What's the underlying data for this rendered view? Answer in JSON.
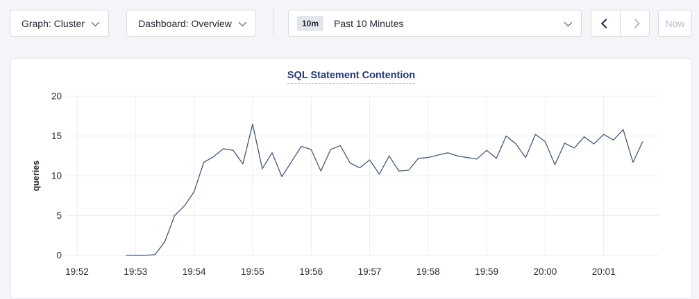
{
  "toolbar": {
    "graph_dropdown_label": "Graph: Cluster",
    "dashboard_dropdown_label": "Dashboard: Overview",
    "time_range_badge": "10m",
    "time_range_label": "Past 10 Minutes",
    "now_button_label": "Now"
  },
  "icons": {
    "chevron_down": "css-chevron-down-shape",
    "chevron_left": "css-chevron-left-shape",
    "chevron_right": "css-chevron-right-shape"
  },
  "colors": {
    "page_background": "#f4f5f9",
    "card_background": "#ffffff",
    "line": "#475872",
    "gridline": "#ebedf0",
    "title": "#24386b",
    "disabled": "#b9bfc9"
  },
  "chart_data": {
    "type": "line",
    "title": "SQL Statement Contention",
    "ylabel": "queries",
    "ylim": [
      0,
      20
    ],
    "y_ticks": [
      0,
      5,
      10,
      15,
      20
    ],
    "x_ticks": [
      "19:52",
      "19:53",
      "19:54",
      "19:55",
      "19:56",
      "19:57",
      "19:58",
      "19:59",
      "20:00",
      "20:01"
    ],
    "grid": true,
    "legend": "none",
    "line_color": "#475872",
    "series": [
      {
        "name": "queries",
        "x": [
          "19:52:50",
          "19:53:00",
          "19:53:10",
          "19:53:20",
          "19:53:30",
          "19:53:40",
          "19:53:50",
          "19:54:00",
          "19:54:10",
          "19:54:20",
          "19:54:30",
          "19:54:40",
          "19:54:50",
          "19:55:00",
          "19:55:10",
          "19:55:20",
          "19:55:30",
          "19:55:40",
          "19:55:50",
          "19:56:00",
          "19:56:10",
          "19:56:20",
          "19:56:30",
          "19:56:40",
          "19:56:50",
          "19:57:00",
          "19:57:10",
          "19:57:20",
          "19:57:30",
          "19:57:40",
          "19:57:50",
          "19:58:00",
          "19:58:10",
          "19:58:20",
          "19:58:30",
          "19:58:40",
          "19:58:50",
          "19:59:00",
          "19:59:10",
          "19:59:20",
          "19:59:30",
          "19:59:40",
          "19:59:50",
          "20:00:00",
          "20:00:10",
          "20:00:20",
          "20:00:30",
          "20:00:40",
          "20:00:50",
          "20:01:00",
          "20:01:10",
          "20:01:20",
          "20:01:30",
          "20:01:40"
        ],
        "values": [
          0,
          0,
          0,
          0.1,
          1.7,
          5.0,
          6.2,
          8.0,
          11.7,
          12.4,
          13.4,
          13.2,
          11.5,
          16.5,
          10.9,
          12.9,
          9.9,
          11.8,
          13.7,
          13.3,
          10.6,
          13.3,
          13.8,
          11.6,
          11.0,
          12.0,
          10.2,
          12.5,
          10.6,
          10.7,
          12.2,
          12.3,
          12.6,
          12.9,
          12.5,
          12.3,
          12.1,
          13.2,
          12.2,
          15.0,
          14.0,
          12.3,
          15.2,
          14.3,
          11.4,
          14.1,
          13.5,
          14.9,
          14.0,
          15.2,
          14.5,
          15.8,
          11.7,
          14.3
        ]
      }
    ]
  }
}
